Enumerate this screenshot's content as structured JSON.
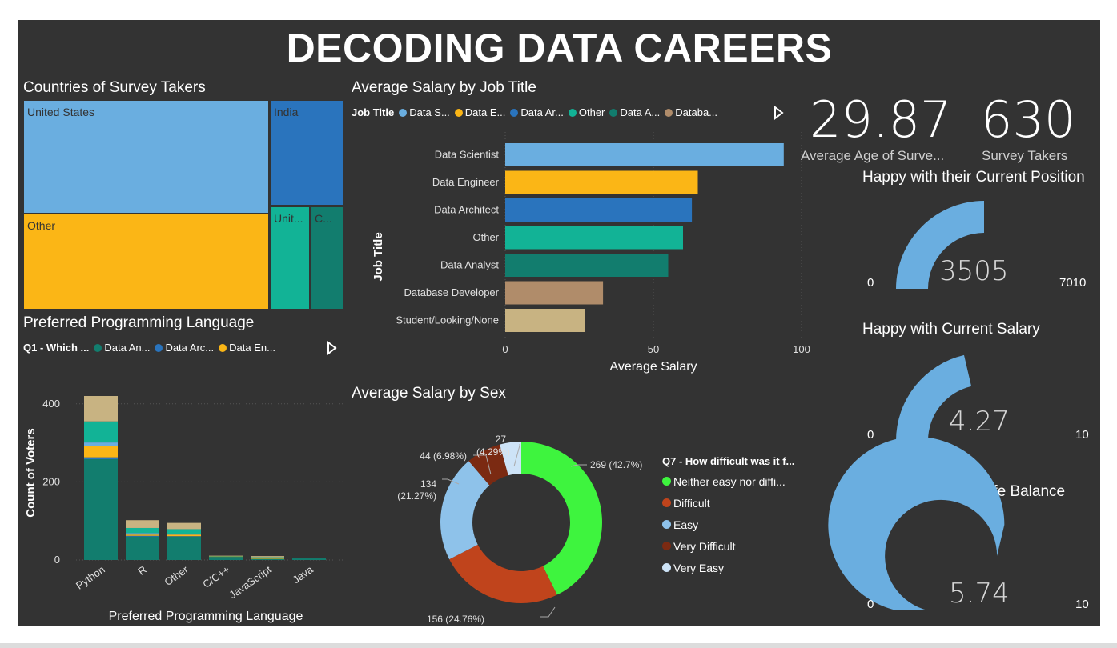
{
  "dashboard_title": "DECODING DATA CAREERS",
  "treemap": {
    "title": "Countries of Survey Takers",
    "tiles": [
      {
        "label": "United States",
        "color": "#6aaee0"
      },
      {
        "label": "Other",
        "color": "#fbb616"
      },
      {
        "label": "India",
        "color": "#2a74bd"
      },
      {
        "label": "Unit...",
        "color": "#12b396"
      },
      {
        "label": "C...",
        "color": "#127d6e"
      }
    ]
  },
  "salary_by_job": {
    "title": "Average Salary by Job Title",
    "legend_title": "Job Title",
    "legend": [
      {
        "label": "Data S...",
        "color": "#6aaee0"
      },
      {
        "label": "Data E...",
        "color": "#fbb616"
      },
      {
        "label": "Data Ar...",
        "color": "#2a74bd"
      },
      {
        "label": "Other",
        "color": "#12b396"
      },
      {
        "label": "Data A...",
        "color": "#127d6e"
      },
      {
        "label": "Databa...",
        "color": "#b08c6a"
      }
    ]
  },
  "languages": {
    "title": "Preferred Programming Language",
    "legend_title": "Q1 - Which ...",
    "legend": [
      {
        "label": "Data An...",
        "color": "#127d6e"
      },
      {
        "label": "Data Arc...",
        "color": "#2a74bd"
      },
      {
        "label": "Data En...",
        "color": "#fbb616"
      }
    ]
  },
  "salary_by_sex": {
    "title": "Average Salary by Sex",
    "legend_title": "Q7 - How difficult was it f...",
    "data_labels": [
      "269 (42.7%)",
      "156 (24.76%)",
      "134",
      "(21.27%)",
      "44 (6.98%)",
      "27",
      "(4.29%)"
    ]
  },
  "kpis": {
    "avg_age": "29.87",
    "avg_age_label": "Average Age of Surve...",
    "survey_takers": "630",
    "survey_takers_label": "Survey Takers"
  },
  "gauges": [
    {
      "title": "Happy with their Current Position",
      "value": 3505,
      "value_label": "3505",
      "min": "0",
      "max": "7010",
      "max_value": 7010
    },
    {
      "title": "Happy with Current Salary",
      "value": 4.27,
      "value_label": "4.27",
      "min": "0",
      "max": "10",
      "max_value": 10
    },
    {
      "title": "Happy with Work Life Balance",
      "value": 5.74,
      "value_label": "5.74",
      "min": "0",
      "max": "10",
      "max_value": 10
    }
  ],
  "chart_data": [
    {
      "type": "bar",
      "orientation": "horizontal",
      "title": "Average Salary by Job Title",
      "xlabel": "Average Salary",
      "ylabel": "Job Title",
      "categories": [
        "Data Scientist",
        "Data Engineer",
        "Data Architect",
        "Other",
        "Data Analyst",
        "Database Developer",
        "Student/Looking/None"
      ],
      "values": [
        94,
        65,
        63,
        60,
        55,
        33,
        27
      ],
      "colors": [
        "#6aaee0",
        "#fbb616",
        "#2a74bd",
        "#12b396",
        "#127d6e",
        "#b08c6a",
        "#c8b382"
      ],
      "xlim": [
        0,
        100
      ],
      "xticks": [
        "0",
        "50",
        "100"
      ]
    },
    {
      "type": "bar",
      "stacked": true,
      "title": "Preferred Programming Language",
      "xlabel": "Preferred Programming Language",
      "ylabel": "Count of Voters",
      "categories": [
        "Python",
        "R",
        "Other",
        "C/C++",
        "JavaScript",
        "Java"
      ],
      "ylim": [
        0,
        420
      ],
      "yticks": [
        "0",
        "200",
        "400"
      ],
      "series": [
        {
          "name": "Data An...",
          "color": "#127d6e",
          "values": [
            258,
            60,
            60,
            8,
            3,
            4
          ]
        },
        {
          "name": "Data Arc...",
          "color": "#2a74bd",
          "values": [
            5,
            2,
            1,
            0,
            0,
            0
          ]
        },
        {
          "name": "Data En...",
          "color": "#fbb616",
          "values": [
            28,
            3,
            4,
            1,
            2,
            0
          ]
        },
        {
          "color": "#6aaee0",
          "values": [
            10,
            4,
            2,
            0,
            1,
            0
          ]
        },
        {
          "color": "#12b396",
          "values": [
            54,
            13,
            12,
            1,
            1,
            0
          ]
        },
        {
          "color": "#c8b382",
          "values": [
            65,
            20,
            16,
            1,
            3,
            0
          ]
        }
      ]
    },
    {
      "type": "pie",
      "donut": true,
      "title": "Average Salary by Sex",
      "series": [
        {
          "name": "Neither easy nor diffi...",
          "value": 269,
          "percent": 42.7,
          "color": "#3ef43e"
        },
        {
          "name": "Difficult",
          "value": 156,
          "percent": 24.76,
          "color": "#c0441c"
        },
        {
          "name": "Easy",
          "value": 134,
          "percent": 21.27,
          "color": "#8ec2ea"
        },
        {
          "name": "Very Difficult",
          "value": 44,
          "percent": 6.98,
          "color": "#7b2a12"
        },
        {
          "name": "Very Easy",
          "value": 27,
          "percent": 4.29,
          "color": "#cde3f7"
        }
      ]
    }
  ]
}
